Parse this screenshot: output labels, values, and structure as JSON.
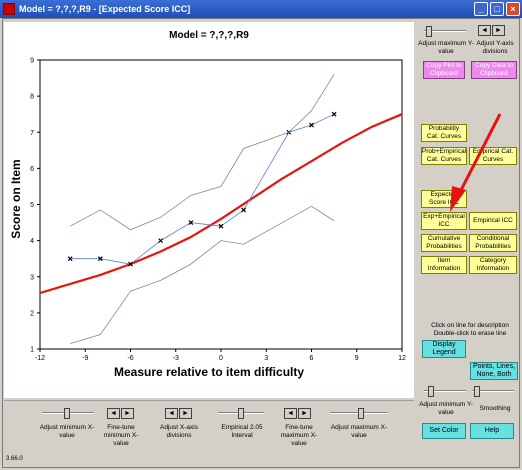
{
  "window": {
    "title": "Model = ?,?,?,R9 - [Expected Score ICC]",
    "minimize": "_",
    "maximize": "□",
    "close": "×"
  },
  "chart_data": {
    "type": "line",
    "title": "Model = ?,?,?,R9",
    "xlabel": "Measure relative to item difficulty",
    "ylabel": "Score on Item",
    "xlim": [
      -12,
      12
    ],
    "ylim": [
      1,
      9
    ],
    "xticks": [
      "-12",
      "-9",
      "-6",
      "-3",
      "0",
      "3",
      "6",
      "9",
      "12"
    ],
    "yticks": [
      "1",
      "2",
      "3",
      "4",
      "5",
      "6",
      "7",
      "8",
      "9"
    ],
    "series": [
      {
        "role": "expected",
        "color": "#e8140a",
        "x": [
          -12,
          -10,
          -8,
          -6,
          -4,
          -2,
          0,
          2,
          4,
          6,
          8,
          10,
          12
        ],
        "y": [
          2.55,
          2.8,
          3.05,
          3.35,
          3.7,
          4.1,
          4.6,
          5.15,
          5.7,
          6.2,
          6.7,
          7.15,
          7.5
        ]
      },
      {
        "role": "empirical",
        "color": "#5a7fd0",
        "x": [
          -10,
          -8,
          -6,
          -4,
          -2,
          0,
          1.5,
          4.5,
          6,
          7.5
        ],
        "y": [
          3.5,
          3.5,
          3.35,
          4.0,
          4.5,
          4.4,
          4.85,
          7.0,
          7.2,
          7.5
        ]
      },
      {
        "role": "upper",
        "color": "#7a8c8c",
        "x": [
          -10,
          -8,
          -6,
          -4,
          -2,
          0,
          1.5,
          4.5,
          6,
          7.5
        ],
        "y": [
          4.4,
          4.85,
          4.3,
          4.65,
          5.25,
          5.5,
          6.55,
          7.0,
          7.6,
          8.6
        ]
      },
      {
        "role": "lower",
        "color": "#7a8c8c",
        "x": [
          -10,
          -8,
          -6,
          -4,
          -2,
          0,
          1.5,
          4.5,
          6,
          7.5
        ],
        "y": [
          1.15,
          1.4,
          2.6,
          2.9,
          3.35,
          4.0,
          3.9,
          4.6,
          4.95,
          4.55
        ]
      }
    ]
  },
  "right_panel": {
    "adjust_max_y": "Adjust maximum Y-value",
    "adjust_y_div": "Adjust Y-axis divisions",
    "copy_plot": "Copy Plot to Clipboard",
    "copy_data": "Copy Data to Clipboard",
    "prob_cat": "Probability Cat. Curves",
    "prob_emp_cat": "Prob+Empirical Cat. Curves",
    "emp_cat": "Empirical Cat. Curves",
    "expected_icc": "Expected Score ICC",
    "exp_emp_icc": "Exp+Empirical ICC",
    "emp_icc": "Empirical ICC",
    "cum_prob": "Cumulative Probabilities",
    "cond_prob": "Conditional Probabilities",
    "item_info": "Item Information",
    "cat_info": "Category Information",
    "click_hint": "Click on line for description Double-click to erase line",
    "display_legend": "Display Legend",
    "points_lines": "Points, Lines, None, Both",
    "adjust_min_y": "Adjust minimum Y-value",
    "smoothing": "Smoothing",
    "set_color": "Set Color",
    "help": "Help"
  },
  "bottom_panel": {
    "adjust_min_x": "Adjust minimum X-value",
    "fine_min_x": "Fine-tune minimum X-value",
    "adjust_x_div": "Adjust X-axis divisions",
    "empirical_interval": "Empirical 2.05 Interval",
    "fine_max_x": "Fine-tune maximum X-value",
    "adjust_max_x": "Adjust maximum X-value",
    "left_arrow": "◄",
    "right_arrow": "►"
  },
  "version": "3.66.0"
}
